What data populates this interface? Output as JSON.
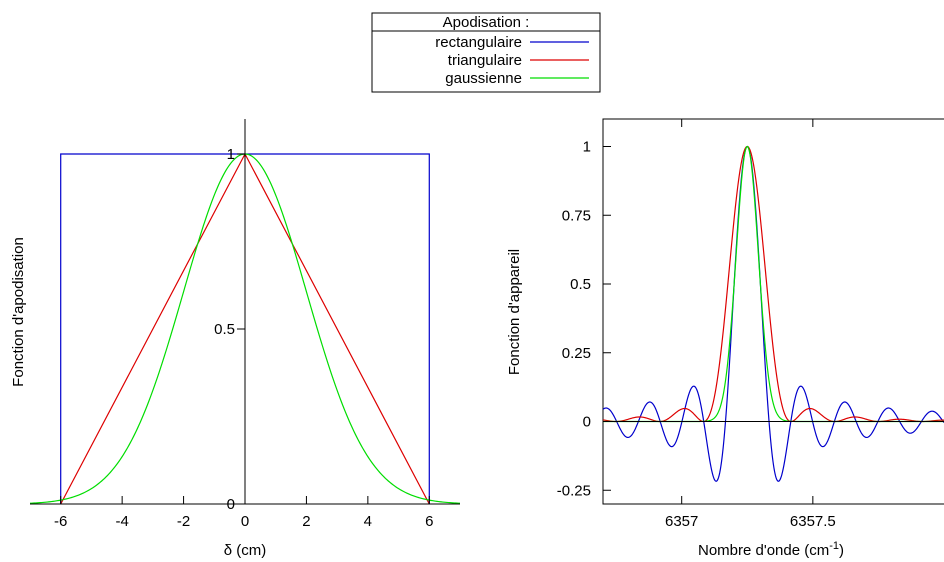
{
  "legend": {
    "title": "Apodisation :",
    "entries": [
      {
        "label": "rectangulaire",
        "color": "#0000cc"
      },
      {
        "label": "triangulaire",
        "color": "#dd0000"
      },
      {
        "label": "gaussienne",
        "color": "#00dd00"
      }
    ],
    "placement": "top-center"
  },
  "chart_data": [
    {
      "type": "line",
      "xlabel": "δ (cm)",
      "ylabel": "Fonction d'apodisation",
      "xlim": [
        -7,
        7
      ],
      "ylim": [
        0,
        1.1
      ],
      "x_ticks": [
        -6,
        -4,
        -2,
        0,
        2,
        4,
        6
      ],
      "x_tick_labels": [
        "-6",
        "-4",
        "-2",
        "0",
        "2",
        "4",
        "6"
      ],
      "y_ticks": [
        0,
        0.5,
        1
      ],
      "y_tick_labels": [
        "0",
        "0.5",
        "1"
      ],
      "axis_zero_lines": true,
      "grid": false,
      "series": [
        {
          "name": "rectangulaire",
          "color": "#0000cc",
          "shape": "rectangle",
          "x": [
            -6,
            -6,
            6,
            6
          ],
          "y": [
            0,
            1,
            1,
            0
          ]
        },
        {
          "name": "triangulaire",
          "color": "#dd0000",
          "shape": "triangle",
          "x": [
            -6,
            0,
            6
          ],
          "y": [
            0,
            1,
            0
          ]
        },
        {
          "name": "gaussienne",
          "color": "#00dd00",
          "shape": "gaussian",
          "center": 0,
          "sigma": 2.0,
          "x_range": [
            -7,
            7
          ]
        }
      ]
    },
    {
      "type": "line",
      "xlabel": "Nombre d'onde (cm",
      "xlabel_superscript": "-1",
      "xlabel_suffix": ")",
      "ylabel": "Fonction d'appareil",
      "xlim": [
        6356.7,
        6358.0
      ],
      "ylim": [
        -0.3,
        1.1
      ],
      "x_ticks": [
        6357,
        6357.5
      ],
      "x_tick_labels": [
        "6357",
        "6357.5"
      ],
      "y_ticks": [
        -0.25,
        0,
        0.25,
        0.5,
        0.75,
        1
      ],
      "y_tick_labels": [
        "-0.25",
        "0",
        "0.25",
        "0.5",
        "0.75",
        "1"
      ],
      "axis_zero_lines": true,
      "grid": false,
      "center": 6357.25,
      "series": [
        {
          "name": "rectangulaire",
          "color": "#0000cc",
          "shape": "sinc",
          "first_zero_offset": 0.083,
          "x_range": [
            6356.7,
            6358.0
          ]
        },
        {
          "name": "triangulaire",
          "color": "#dd0000",
          "shape": "sinc2",
          "first_zero_offset": 0.167,
          "x_range": [
            6356.7,
            6358.0
          ]
        },
        {
          "name": "gaussienne",
          "color": "#00dd00",
          "shape": "gaussian",
          "fwhm": 0.1,
          "x_range": [
            6356.7,
            6358.0
          ]
        }
      ]
    }
  ]
}
